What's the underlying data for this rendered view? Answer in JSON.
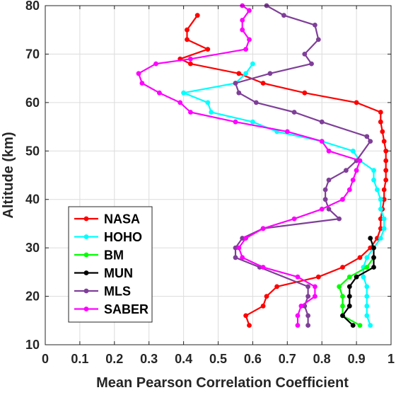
{
  "chart_data": {
    "type": "line",
    "title": "",
    "xlabel": "Mean Pearson Correlation Coefficient",
    "ylabel": "Altitude (km)",
    "xlim": [
      0,
      1
    ],
    "ylim": [
      10,
      80
    ],
    "xticks": [
      0,
      0.1,
      0.2,
      0.3,
      0.4,
      0.5,
      0.6,
      0.7,
      0.8,
      0.9,
      1
    ],
    "xtick_labels": [
      "0",
      "0.1",
      "0.2",
      "0.3",
      "0.4",
      "0.5",
      "0.6",
      "0.7",
      "0.8",
      "0.9",
      "1"
    ],
    "yticks": [
      10,
      20,
      30,
      40,
      50,
      60,
      70,
      80
    ],
    "ytick_labels": [
      "10",
      "20",
      "30",
      "40",
      "50",
      "60",
      "70",
      "80"
    ],
    "grid": true,
    "legend_position": "bottom-left",
    "series": [
      {
        "name": "NASA",
        "color": "#ff0000",
        "points": [
          [
            0.59,
            14
          ],
          [
            0.58,
            16
          ],
          [
            0.63,
            18
          ],
          [
            0.64,
            20
          ],
          [
            0.67,
            22
          ],
          [
            0.79,
            24
          ],
          [
            0.86,
            26
          ],
          [
            0.91,
            28
          ],
          [
            0.94,
            30
          ],
          [
            0.96,
            32
          ],
          [
            0.97,
            34
          ],
          [
            0.97,
            36
          ],
          [
            0.975,
            38
          ],
          [
            0.98,
            40
          ],
          [
            0.98,
            42
          ],
          [
            0.985,
            44
          ],
          [
            0.985,
            46
          ],
          [
            0.985,
            48
          ],
          [
            0.985,
            50
          ],
          [
            0.98,
            52
          ],
          [
            0.975,
            54
          ],
          [
            0.97,
            56
          ],
          [
            0.97,
            58
          ],
          [
            0.9,
            60
          ],
          [
            0.75,
            62
          ],
          [
            0.63,
            64
          ],
          [
            0.56,
            66
          ],
          [
            0.42,
            68
          ],
          [
            0.39,
            69
          ],
          [
            0.47,
            71
          ],
          [
            0.41,
            73
          ],
          [
            0.41,
            75
          ],
          [
            0.44,
            78
          ]
        ]
      },
      {
        "name": "HOHO",
        "color": "#00ffff",
        "points": [
          [
            0.94,
            14
          ],
          [
            0.93,
            16
          ],
          [
            0.93,
            18
          ],
          [
            0.93,
            20
          ],
          [
            0.93,
            22
          ],
          [
            0.92,
            24
          ],
          [
            0.92,
            26
          ],
          [
            0.93,
            28
          ],
          [
            0.95,
            30
          ],
          [
            0.97,
            32
          ],
          [
            0.98,
            34
          ],
          [
            0.98,
            36
          ],
          [
            0.97,
            38
          ],
          [
            0.97,
            40
          ],
          [
            0.96,
            42
          ],
          [
            0.95,
            44
          ],
          [
            0.95,
            46
          ],
          [
            0.91,
            48
          ],
          [
            0.89,
            50
          ],
          [
            0.8,
            52
          ],
          [
            0.67,
            54
          ],
          [
            0.6,
            56
          ],
          [
            0.48,
            58
          ],
          [
            0.47,
            60
          ],
          [
            0.4,
            62
          ],
          [
            0.55,
            64
          ],
          [
            0.58,
            66
          ],
          [
            0.6,
            68
          ]
        ]
      },
      {
        "name": "BM",
        "color": "#00ff00",
        "points": [
          [
            0.91,
            14
          ],
          [
            0.86,
            16
          ],
          [
            0.86,
            18
          ],
          [
            0.86,
            20
          ],
          [
            0.85,
            22
          ],
          [
            0.88,
            24
          ],
          [
            0.93,
            26
          ],
          [
            0.95,
            28
          ]
        ]
      },
      {
        "name": "MUN",
        "color": "#000000",
        "points": [
          [
            0.89,
            14
          ],
          [
            0.86,
            16
          ],
          [
            0.88,
            18
          ],
          [
            0.88,
            20
          ],
          [
            0.88,
            22
          ],
          [
            0.9,
            24
          ],
          [
            0.95,
            26
          ],
          [
            0.95,
            28
          ],
          [
            0.95,
            30
          ],
          [
            0.94,
            32
          ]
        ]
      },
      {
        "name": "MLS",
        "color": "#7f3f98",
        "points": [
          [
            0.76,
            14
          ],
          [
            0.76,
            16
          ],
          [
            0.75,
            18
          ],
          [
            0.76,
            20
          ],
          [
            0.76,
            22
          ],
          [
            0.62,
            26
          ],
          [
            0.55,
            28
          ],
          [
            0.55,
            30
          ],
          [
            0.57,
            32
          ],
          [
            0.63,
            34
          ],
          [
            0.85,
            36
          ],
          [
            0.82,
            38
          ],
          [
            0.81,
            40
          ],
          [
            0.81,
            42
          ],
          [
            0.82,
            44
          ],
          [
            0.87,
            46
          ],
          [
            0.9,
            48
          ],
          [
            0.94,
            52
          ],
          [
            0.93,
            53
          ],
          [
            0.8,
            56
          ],
          [
            0.72,
            58
          ],
          [
            0.61,
            60
          ],
          [
            0.56,
            62
          ],
          [
            0.55,
            64
          ],
          [
            0.65,
            66
          ],
          [
            0.77,
            68
          ],
          [
            0.75,
            70
          ],
          [
            0.79,
            73
          ],
          [
            0.78,
            76
          ],
          [
            0.69,
            78
          ],
          [
            0.64,
            80
          ]
        ]
      },
      {
        "name": "SABER",
        "color": "#ff00ff",
        "points": [
          [
            0.73,
            14
          ],
          [
            0.73,
            16
          ],
          [
            0.74,
            18
          ],
          [
            0.78,
            20
          ],
          [
            0.78,
            22
          ],
          [
            0.73,
            24
          ],
          [
            0.63,
            26
          ],
          [
            0.57,
            28
          ],
          [
            0.56,
            30
          ],
          [
            0.58,
            32
          ],
          [
            0.63,
            34
          ],
          [
            0.72,
            36
          ],
          [
            0.8,
            38
          ],
          [
            0.86,
            40
          ],
          [
            0.88,
            42
          ],
          [
            0.89,
            44
          ],
          [
            0.9,
            46
          ],
          [
            0.91,
            48
          ],
          [
            0.82,
            50
          ],
          [
            0.8,
            52
          ],
          [
            0.7,
            54
          ],
          [
            0.55,
            56
          ],
          [
            0.42,
            58
          ],
          [
            0.39,
            60
          ],
          [
            0.33,
            62
          ],
          [
            0.28,
            64
          ],
          [
            0.27,
            66
          ],
          [
            0.32,
            68
          ],
          [
            0.42,
            69
          ],
          [
            0.58,
            71
          ],
          [
            0.59,
            73
          ],
          [
            0.57,
            75
          ],
          [
            0.57,
            77
          ],
          [
            0.59,
            79
          ],
          [
            0.57,
            80
          ]
        ]
      }
    ]
  }
}
